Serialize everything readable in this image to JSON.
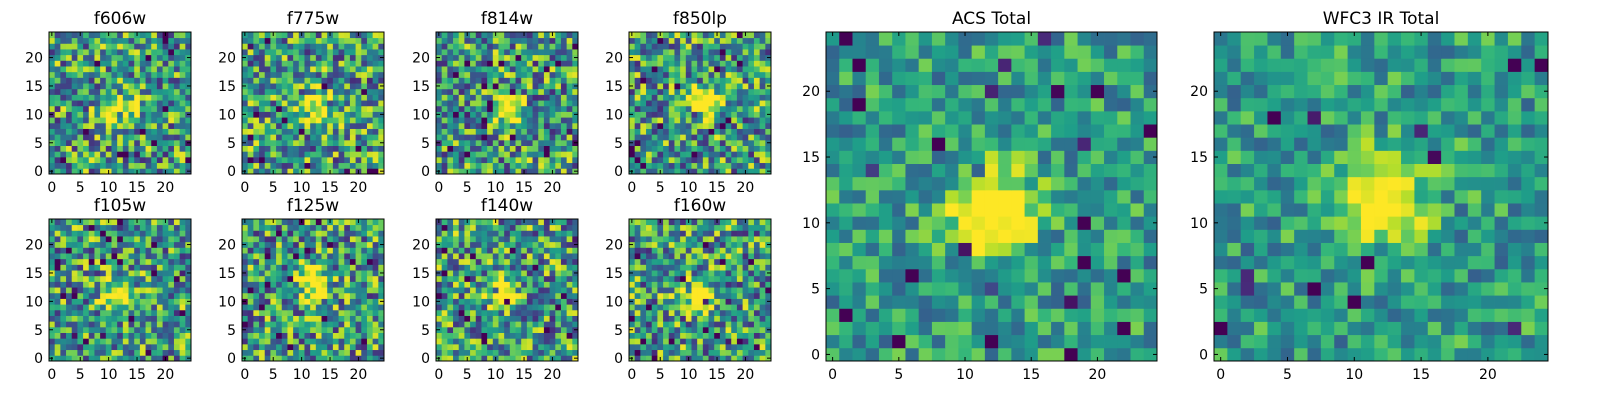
{
  "chart_data": [
    {
      "type": "heatmap",
      "title": "f606w",
      "xticks": [
        0,
        5,
        10,
        15,
        20
      ],
      "yticks": [
        0,
        5,
        10,
        15,
        20
      ],
      "xlim": [
        0,
        24
      ],
      "ylim": [
        0,
        24
      ],
      "peak": [
        12,
        11
      ],
      "colormap": "viridis"
    },
    {
      "type": "heatmap",
      "title": "f775w",
      "xticks": [
        0,
        5,
        10,
        15,
        20
      ],
      "yticks": [
        0,
        5,
        10,
        15,
        20
      ],
      "xlim": [
        0,
        24
      ],
      "ylim": [
        0,
        24
      ],
      "peak": [
        13,
        11
      ],
      "colormap": "viridis"
    },
    {
      "type": "heatmap",
      "title": "f814w",
      "xticks": [
        0,
        5,
        10,
        15,
        20
      ],
      "yticks": [
        0,
        5,
        10,
        15,
        20
      ],
      "xlim": [
        0,
        24
      ],
      "ylim": [
        0,
        24
      ],
      "peak": [
        12,
        11
      ],
      "colormap": "viridis"
    },
    {
      "type": "heatmap",
      "title": "f850lp",
      "xticks": [
        0,
        5,
        10,
        15,
        20
      ],
      "yticks": [
        0,
        5,
        10,
        15,
        20
      ],
      "xlim": [
        0,
        24
      ],
      "ylim": [
        0,
        24
      ],
      "peak": [
        13,
        12
      ],
      "colormap": "viridis"
    },
    {
      "type": "heatmap",
      "title": "f105w",
      "xticks": [
        0,
        5,
        10,
        15,
        20
      ],
      "yticks": [
        0,
        5,
        10,
        15,
        20
      ],
      "xlim": [
        0,
        24
      ],
      "ylim": [
        0,
        24
      ],
      "peak": [
        12,
        11
      ],
      "colormap": "viridis"
    },
    {
      "type": "heatmap",
      "title": "f125w",
      "xticks": [
        0,
        5,
        10,
        15,
        20
      ],
      "yticks": [
        0,
        5,
        10,
        15,
        20
      ],
      "xlim": [
        0,
        24
      ],
      "ylim": [
        0,
        24
      ],
      "peak": [
        12,
        13
      ],
      "colormap": "viridis"
    },
    {
      "type": "heatmap",
      "title": "f140w",
      "xticks": [
        0,
        5,
        10,
        15,
        20
      ],
      "yticks": [
        0,
        5,
        10,
        15,
        20
      ],
      "xlim": [
        0,
        24
      ],
      "ylim": [
        0,
        24
      ],
      "peak": [
        11,
        12
      ],
      "colormap": "viridis"
    },
    {
      "type": "heatmap",
      "title": "f160w",
      "xticks": [
        0,
        5,
        10,
        15,
        20
      ],
      "yticks": [
        0,
        5,
        10,
        15,
        20
      ],
      "xlim": [
        0,
        24
      ],
      "ylim": [
        0,
        24
      ],
      "peak": [
        12,
        11
      ],
      "colormap": "viridis"
    },
    {
      "type": "heatmap",
      "title": "ACS Total",
      "xticks": [
        0,
        5,
        10,
        15,
        20
      ],
      "yticks": [
        0,
        5,
        10,
        15,
        20
      ],
      "xlim": [
        0,
        24
      ],
      "ylim": [
        0,
        24
      ],
      "peak": [
        12,
        11
      ],
      "colormap": "viridis"
    },
    {
      "type": "heatmap",
      "title": "WFC3 IR Total",
      "xticks": [
        0,
        5,
        10,
        15,
        20
      ],
      "yticks": [
        0,
        5,
        10,
        15,
        20
      ],
      "xlim": [
        0,
        24
      ],
      "ylim": [
        0,
        24
      ],
      "peak": [
        12,
        12
      ],
      "colormap": "viridis"
    }
  ]
}
